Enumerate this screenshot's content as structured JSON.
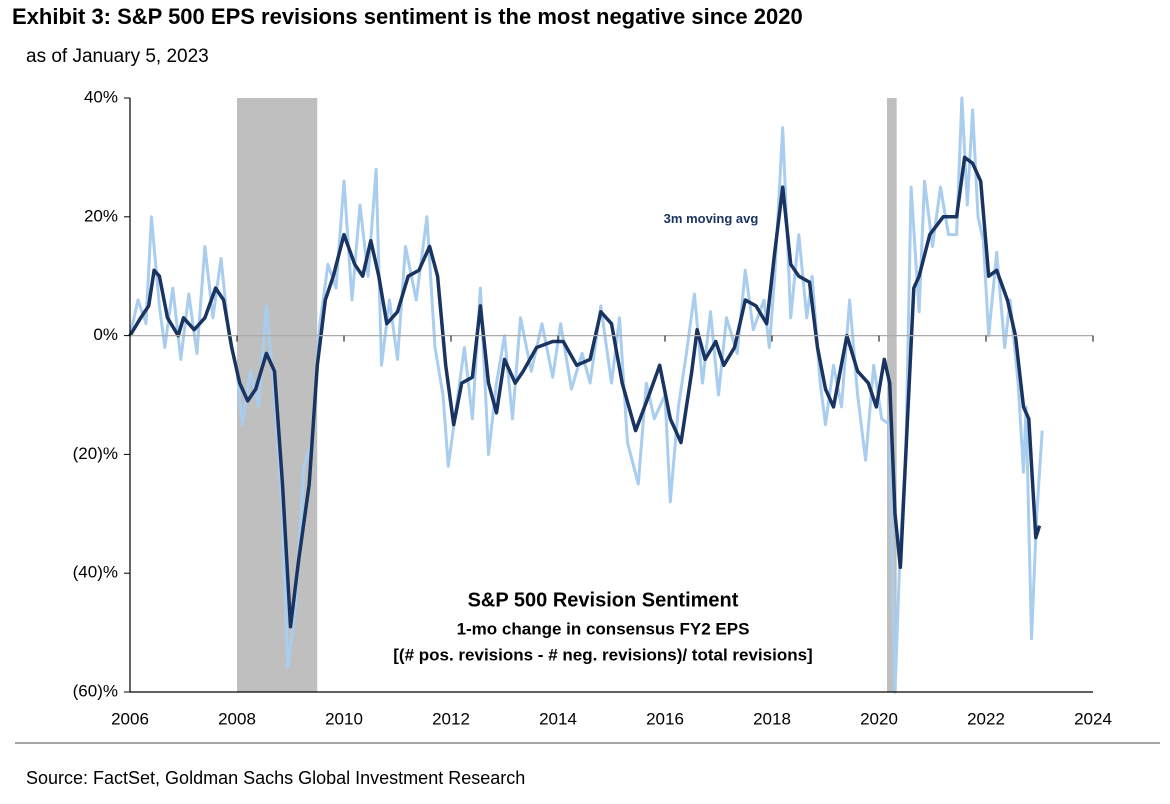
{
  "chart_data": {
    "type": "line",
    "title": "Exhibit 3: S&P 500 EPS revisions sentiment is the most negative since 2020",
    "subtitle": "as of January 5, 2023",
    "annotations": [
      "S&P 500 Revision Sentiment",
      "1-mo change in consensus FY2 EPS",
      "[(# pos. revisions - # neg. revisions)/ total revisions]"
    ],
    "xlim": [
      2006,
      2024
    ],
    "xticks": [
      2006,
      2008,
      2010,
      2012,
      2014,
      2016,
      2018,
      2020,
      2022,
      2024
    ],
    "ylim": [
      -60,
      40
    ],
    "yticks": [
      {
        "value": -60,
        "label": "(60)%"
      },
      {
        "value": -40,
        "label": "(40)%"
      },
      {
        "value": -20,
        "label": "(20)%"
      },
      {
        "value": 0,
        "label": "0%"
      },
      {
        "value": 20,
        "label": "20%"
      },
      {
        "value": 40,
        "label": "40%"
      }
    ],
    "shaded_regions": [
      [
        2008.0,
        2009.5
      ],
      [
        2020.15,
        2020.33
      ]
    ],
    "shade_color": "#bfbfbf",
    "series": [
      {
        "color": "#a9cdee",
        "x": [
          2006.0,
          2006.15,
          2006.3,
          2006.4,
          2006.55,
          2006.65,
          2006.8,
          2006.95,
          2007.1,
          2007.25,
          2007.4,
          2007.55,
          2007.7,
          2007.85,
          2008.0,
          2008.1,
          2008.25,
          2008.4,
          2008.55,
          2008.7,
          2008.85,
          2008.95,
          2009.1,
          2009.25,
          2009.4,
          2009.55,
          2009.7,
          2009.85,
          2010.0,
          2010.15,
          2010.3,
          2010.45,
          2010.6,
          2010.7,
          2010.85,
          2011.0,
          2011.15,
          2011.35,
          2011.55,
          2011.7,
          2011.85,
          2011.95,
          2012.1,
          2012.25,
          2012.4,
          2012.55,
          2012.7,
          2012.85,
          2013.0,
          2013.15,
          2013.3,
          2013.5,
          2013.7,
          2013.9,
          2014.05,
          2014.25,
          2014.45,
          2014.6,
          2014.8,
          2015.0,
          2015.15,
          2015.3,
          2015.5,
          2015.65,
          2015.8,
          2016.0,
          2016.1,
          2016.25,
          2016.4,
          2016.55,
          2016.7,
          2016.85,
          2017.0,
          2017.15,
          2017.35,
          2017.5,
          2017.65,
          2017.85,
          2017.95,
          2018.05,
          2018.2,
          2018.35,
          2018.5,
          2018.65,
          2018.75,
          2018.9,
          2019.0,
          2019.15,
          2019.3,
          2019.45,
          2019.6,
          2019.75,
          2019.9,
          2020.05,
          2020.2,
          2020.3,
          2020.4,
          2020.5,
          2020.6,
          2020.75,
          2020.85,
          2021.0,
          2021.15,
          2021.3,
          2021.45,
          2021.55,
          2021.65,
          2021.75,
          2021.85,
          2021.95,
          2022.05,
          2022.2,
          2022.35,
          2022.45,
          2022.6,
          2022.7,
          2022.75,
          2022.85,
          2022.95,
          2023.05
        ],
        "values": [
          0,
          6,
          2,
          20,
          5,
          -2,
          8,
          -4,
          7,
          -3,
          15,
          3,
          13,
          0,
          -6,
          -15,
          -6,
          -12,
          5,
          -10,
          -30,
          -56,
          -45,
          -22,
          -18,
          2,
          12,
          8,
          26,
          6,
          22,
          10,
          28,
          -5,
          6,
          -4,
          15,
          6,
          20,
          -2,
          -10,
          -22,
          -12,
          -2,
          -14,
          8,
          -20,
          -8,
          0,
          -14,
          3,
          -6,
          2,
          -7,
          2,
          -9,
          -3,
          -8,
          5,
          -8,
          3,
          -18,
          -25,
          -8,
          -14,
          -10,
          -28,
          -12,
          -3,
          7,
          -8,
          4,
          -10,
          3,
          -3,
          11,
          1,
          6,
          -2,
          10,
          35,
          3,
          17,
          3,
          10,
          -8,
          -15,
          -5,
          -12,
          6,
          -10,
          -21,
          -5,
          -14,
          -15,
          -60,
          -35,
          -20,
          25,
          4,
          26,
          15,
          25,
          17,
          17,
          40,
          22,
          38,
          20,
          16,
          0,
          14,
          -2,
          6,
          -8,
          -23,
          -12,
          -51,
          -30,
          -16
        ]
      },
      {
        "name": "3m moving avg",
        "color": "#1a3461",
        "x": [
          2006.0,
          2006.2,
          2006.35,
          2006.45,
          2006.55,
          2006.7,
          2006.9,
          2007.0,
          2007.2,
          2007.4,
          2007.6,
          2007.75,
          2007.9,
          2008.05,
          2008.2,
          2008.35,
          2008.55,
          2008.7,
          2008.85,
          2009.0,
          2009.15,
          2009.35,
          2009.5,
          2009.65,
          2009.8,
          2010.0,
          2010.2,
          2010.35,
          2010.5,
          2010.65,
          2010.8,
          2011.0,
          2011.2,
          2011.4,
          2011.6,
          2011.75,
          2011.9,
          2012.05,
          2012.2,
          2012.4,
          2012.55,
          2012.7,
          2012.85,
          2013.0,
          2013.2,
          2013.35,
          2013.6,
          2013.9,
          2014.1,
          2014.35,
          2014.6,
          2014.8,
          2015.0,
          2015.2,
          2015.45,
          2015.7,
          2015.9,
          2016.1,
          2016.3,
          2016.5,
          2016.6,
          2016.75,
          2016.95,
          2017.1,
          2017.3,
          2017.5,
          2017.7,
          2017.9,
          2018.05,
          2018.2,
          2018.35,
          2018.5,
          2018.7,
          2018.85,
          2019.0,
          2019.15,
          2019.4,
          2019.6,
          2019.8,
          2019.95,
          2020.1,
          2020.2,
          2020.3,
          2020.4,
          2020.5,
          2020.65,
          2020.75,
          2020.95,
          2021.2,
          2021.45,
          2021.6,
          2021.75,
          2021.9,
          2022.05,
          2022.2,
          2022.4,
          2022.55,
          2022.7,
          2022.8,
          2022.93,
          2023.0
        ],
        "values": [
          0,
          3,
          5,
          11,
          10,
          3,
          0,
          3,
          1,
          3,
          8,
          6,
          -2,
          -8,
          -11,
          -9,
          -3,
          -6,
          -25,
          -49,
          -38,
          -25,
          -5,
          6,
          10,
          17,
          12,
          10,
          16,
          10,
          2,
          4,
          10,
          11,
          15,
          10,
          -5,
          -15,
          -8,
          -7,
          5,
          -8,
          -13,
          -4,
          -8,
          -6,
          -2,
          -1,
          -1,
          -5,
          -4,
          4,
          2,
          -8,
          -16,
          -10,
          -5,
          -14,
          -18,
          -6,
          1,
          -4,
          -1,
          -5,
          -2,
          6,
          5,
          2,
          14,
          25,
          12,
          10,
          9,
          -2,
          -9,
          -12,
          0,
          -6,
          -8,
          -12,
          -4,
          -8,
          -30,
          -39,
          -20,
          8,
          10,
          17,
          20,
          20,
          30,
          29,
          26,
          10,
          11,
          6,
          0,
          -12,
          -14,
          -34,
          -32
        ]
      }
    ]
  },
  "source": "Source: FactSet, Goldman Sachs Global Investment Research"
}
